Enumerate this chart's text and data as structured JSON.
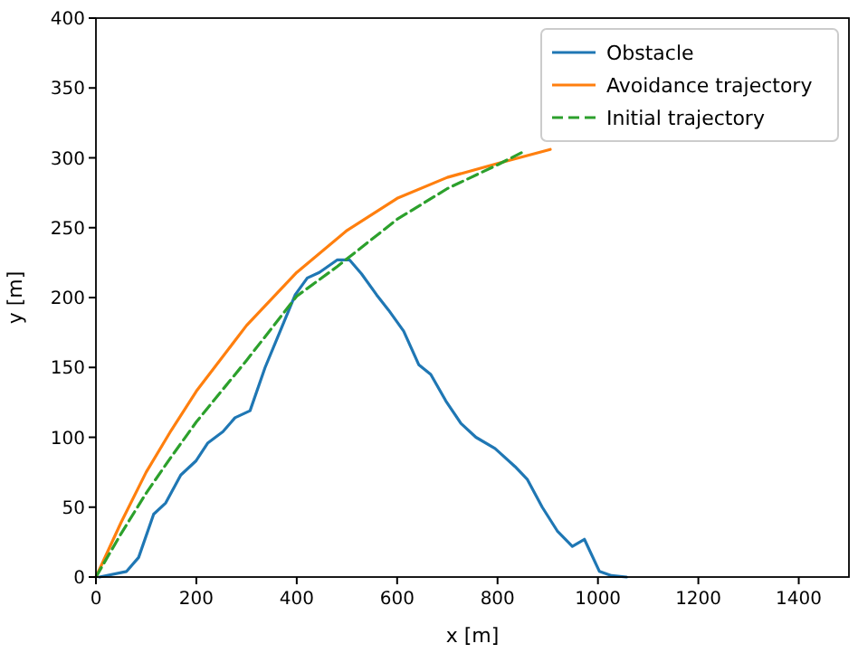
{
  "chart_data": {
    "type": "line",
    "xlabel": "x [m]",
    "ylabel": "y [m]",
    "xlim": [
      0,
      1500
    ],
    "ylim": [
      0,
      400
    ],
    "xticks": [
      0,
      200,
      400,
      600,
      800,
      1000,
      1200,
      1400
    ],
    "yticks": [
      0,
      50,
      100,
      150,
      200,
      250,
      300,
      350,
      400
    ],
    "legend": "top right",
    "series": [
      {
        "name": "Obstacle",
        "color": "#1f77b4",
        "line_style": "solid",
        "x": [
          7,
          61,
          85,
          115,
          139,
          169,
          199,
          223,
          253,
          277,
          307,
          337,
          367,
          397,
          421,
          445,
          481,
          505,
          529,
          559,
          583,
          613,
          643,
          667,
          697,
          727,
          757,
          795,
          835,
          859,
          889,
          919,
          949,
          973,
          1003,
          1027,
          1057
        ],
        "values": [
          0,
          4,
          14,
          45,
          53,
          73,
          83,
          96,
          104,
          114,
          119,
          150,
          176,
          202,
          214,
          218,
          227,
          227,
          217,
          202,
          191,
          176,
          152,
          145,
          126,
          110,
          100,
          92,
          79,
          70,
          50,
          33,
          22,
          27,
          4,
          1,
          0
        ]
      },
      {
        "name": "Avoidance trajectory",
        "color": "#ff7f0e",
        "line_style": "solid",
        "x": [
          0,
          50,
          100,
          150,
          200,
          300,
          400,
          500,
          600,
          700,
          800,
          905
        ],
        "values": [
          0,
          39,
          75,
          105,
          133,
          180,
          218,
          248,
          271,
          286,
          296,
          306
        ]
      },
      {
        "name": "Initial trajectory",
        "color": "#2ca02c",
        "line_style": "dashed",
        "x": [
          0,
          50,
          100,
          150,
          200,
          300,
          400,
          480,
          600,
          700,
          800,
          855
        ],
        "values": [
          0,
          31,
          60,
          86,
          111,
          155,
          201,
          222,
          256,
          278,
          295,
          305
        ]
      }
    ]
  }
}
